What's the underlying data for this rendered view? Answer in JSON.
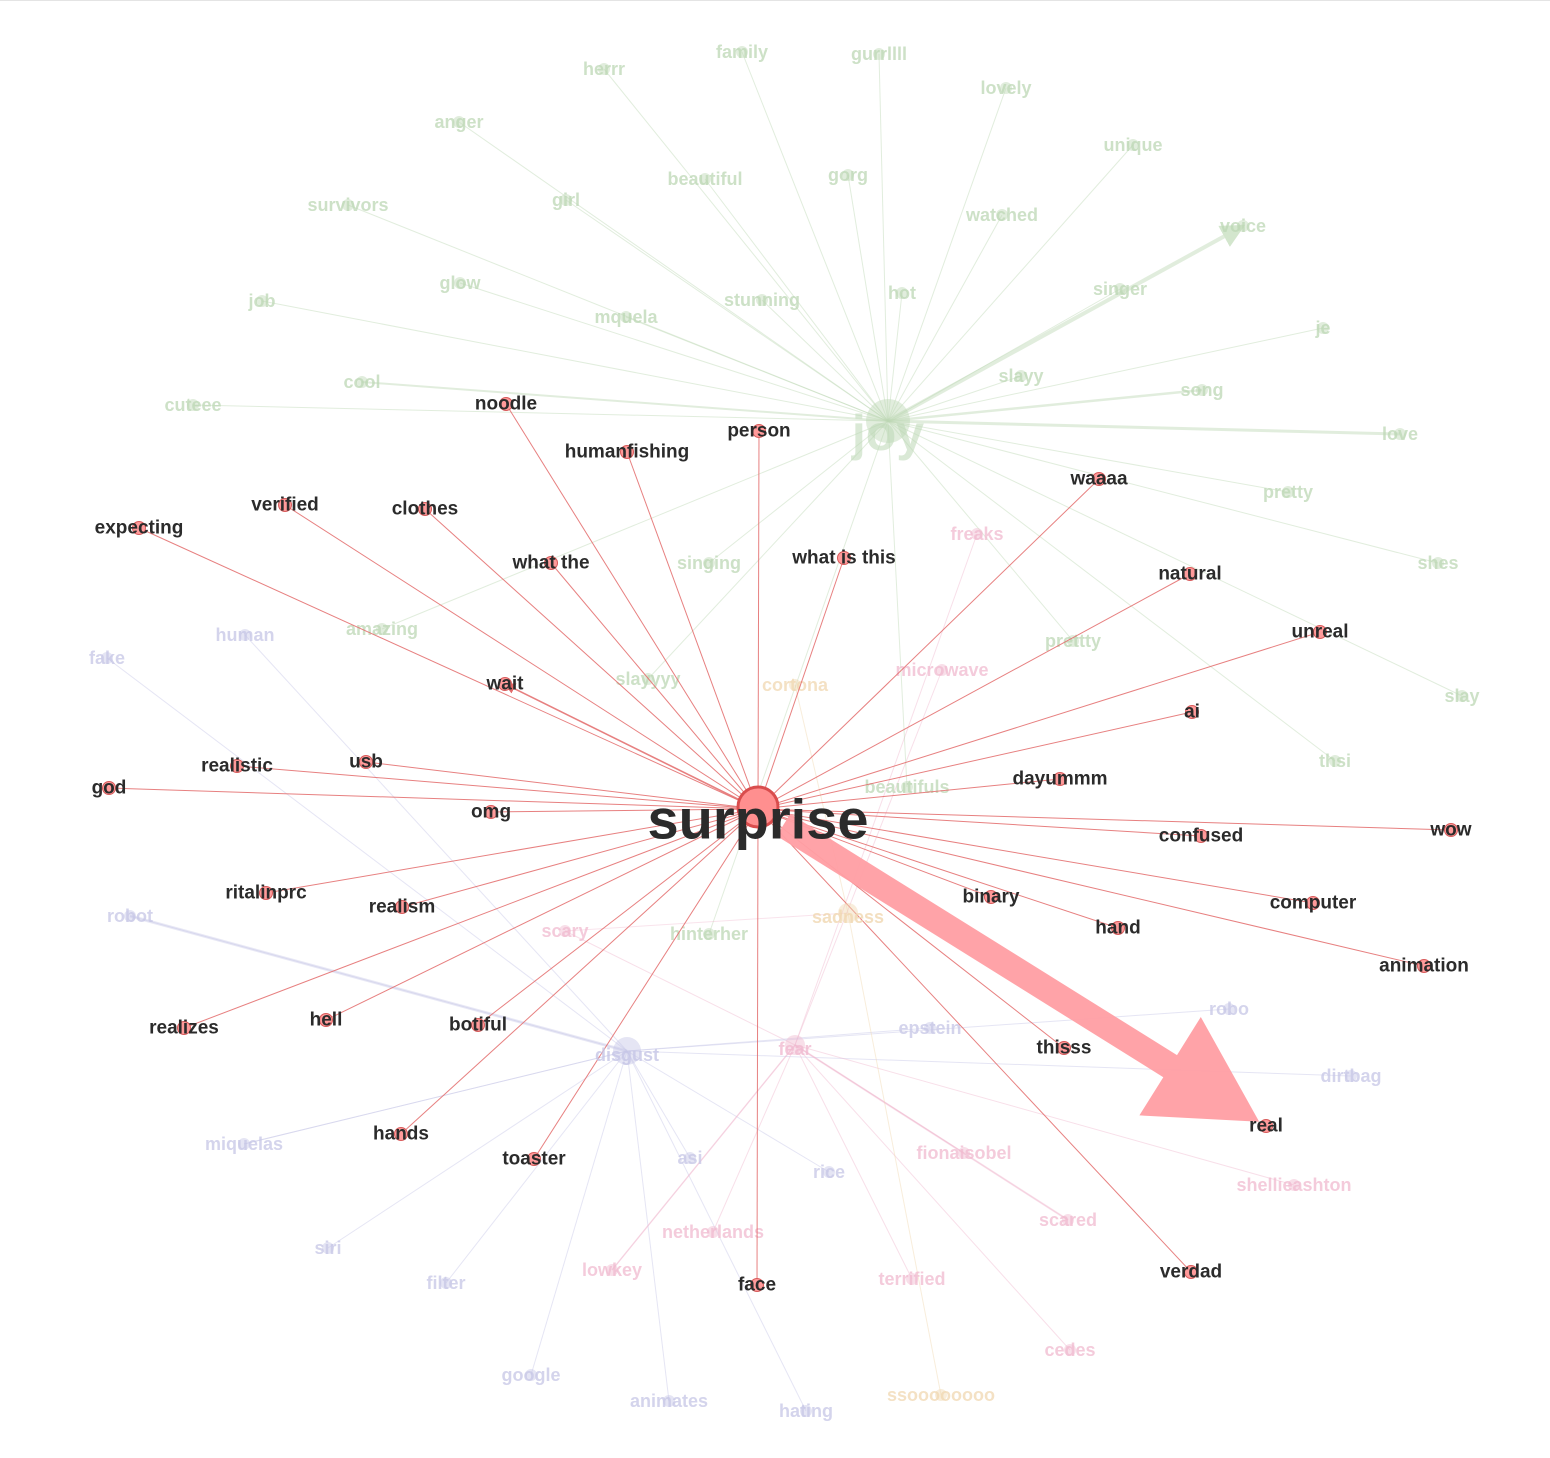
{
  "colors": {
    "surprise": "#e36a6a",
    "joy": "#bcd7b4",
    "disgust": "#c5c5e6",
    "fear": "#f0b9cf",
    "sadness": "#f0d7b0",
    "label_dark": "#2b2b2b"
  },
  "graph": {
    "center": "surprise",
    "hubs": [
      "joy",
      "disgust",
      "fear",
      "sadness"
    ],
    "surprise_neighbors": [
      "noodle",
      "person",
      "humanfishing",
      "verified",
      "clothes",
      "expecting",
      "what the",
      "what is this",
      "waaaa",
      "natural",
      "unreal",
      "ai",
      "wait",
      "realistic",
      "usb",
      "god",
      "omg",
      "dayummm",
      "wow",
      "confused",
      "ritalinprc",
      "realism",
      "binary",
      "computer",
      "hand",
      "animation",
      "realizes",
      "hell",
      "botiful",
      "thisss",
      "real",
      "hands",
      "toaster",
      "face",
      "verdad"
    ],
    "strong_edge": {
      "from": "surprise",
      "to": "real"
    },
    "arrow_edges": [
      "ai",
      "wait"
    ],
    "faded_terms": [
      {
        "label": "herrr",
        "group": "joy"
      },
      {
        "label": "family",
        "group": "joy"
      },
      {
        "label": "gurrllll",
        "group": "joy"
      },
      {
        "label": "lovely",
        "group": "joy"
      },
      {
        "label": "anger",
        "group": "joy"
      },
      {
        "label": "unique",
        "group": "joy"
      },
      {
        "label": "beautiful",
        "group": "joy"
      },
      {
        "label": "gorg",
        "group": "joy"
      },
      {
        "label": "survivors",
        "group": "joy"
      },
      {
        "label": "girl",
        "group": "joy"
      },
      {
        "label": "watched",
        "group": "joy"
      },
      {
        "label": "voice",
        "group": "joy"
      },
      {
        "label": "glow",
        "group": "joy"
      },
      {
        "label": "job",
        "group": "joy"
      },
      {
        "label": "stunning",
        "group": "joy"
      },
      {
        "label": "hot",
        "group": "joy"
      },
      {
        "label": "singer",
        "group": "joy"
      },
      {
        "label": "mquela",
        "group": "joy"
      },
      {
        "label": "je",
        "group": "joy"
      },
      {
        "label": "cool",
        "group": "joy"
      },
      {
        "label": "slayy",
        "group": "joy"
      },
      {
        "label": "song",
        "group": "joy"
      },
      {
        "label": "cuteee",
        "group": "joy"
      },
      {
        "label": "love",
        "group": "joy"
      },
      {
        "label": "pretty",
        "group": "joy"
      },
      {
        "label": "freaks",
        "group": "fear"
      },
      {
        "label": "singing",
        "group": "joy"
      },
      {
        "label": "shes",
        "group": "joy"
      },
      {
        "label": "human",
        "group": "disgust"
      },
      {
        "label": "amazing",
        "group": "joy"
      },
      {
        "label": "prettty",
        "group": "joy"
      },
      {
        "label": "fake",
        "group": "disgust"
      },
      {
        "label": "slayyyy",
        "group": "joy"
      },
      {
        "label": "cortona",
        "group": "sadness"
      },
      {
        "label": "microwave",
        "group": "fear"
      },
      {
        "label": "slay",
        "group": "joy"
      },
      {
        "label": "thsi",
        "group": "joy"
      },
      {
        "label": "beautifuls",
        "group": "joy"
      },
      {
        "label": "robot",
        "group": "disgust"
      },
      {
        "label": "scary",
        "group": "fear"
      },
      {
        "label": "hinterher",
        "group": "joy"
      },
      {
        "label": "robo",
        "group": "disgust"
      },
      {
        "label": "epstein",
        "group": "disgust"
      },
      {
        "label": "dirtbag",
        "group": "disgust"
      },
      {
        "label": "miquelas",
        "group": "disgust"
      },
      {
        "label": "asi",
        "group": "disgust"
      },
      {
        "label": "rice",
        "group": "disgust"
      },
      {
        "label": "fionaisobel",
        "group": "fear"
      },
      {
        "label": "shellieashton",
        "group": "fear"
      },
      {
        "label": "scared",
        "group": "fear"
      },
      {
        "label": "siri",
        "group": "disgust"
      },
      {
        "label": "netherlands",
        "group": "fear"
      },
      {
        "label": "filter",
        "group": "disgust"
      },
      {
        "label": "lowkey",
        "group": "fear"
      },
      {
        "label": "terrified",
        "group": "fear"
      },
      {
        "label": "cedes",
        "group": "fear"
      },
      {
        "label": "google",
        "group": "disgust"
      },
      {
        "label": "animates",
        "group": "disgust"
      },
      {
        "label": "hating",
        "group": "disgust"
      },
      {
        "label": "ssoooooooo",
        "group": "sadness"
      }
    ]
  }
}
